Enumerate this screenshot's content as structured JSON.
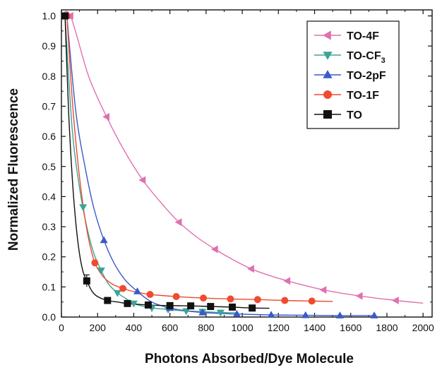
{
  "chart_data": {
    "type": "line",
    "title": "",
    "xlabel": "Photons Absorbed/Dye Molecule",
    "ylabel": "Normalized Fluorescence",
    "xlim": [
      0,
      2050
    ],
    "ylim": [
      0,
      1.02
    ],
    "xticks": [
      0,
      200,
      400,
      600,
      800,
      1000,
      1200,
      1400,
      1600,
      1800,
      2000
    ],
    "yticks": [
      0.0,
      0.1,
      0.2,
      0.3,
      0.4,
      0.5,
      0.6,
      0.7,
      0.8,
      0.9,
      1.0
    ],
    "xtick_labels": [
      "0",
      "200",
      "400",
      "600",
      "800",
      "1000",
      "1200",
      "1400",
      "1600",
      "1800",
      "2000"
    ],
    "ytick_labels": [
      "0.0",
      "0.1",
      "0.2",
      "0.3",
      "0.4",
      "0.5",
      "0.6",
      "0.7",
      "0.8",
      "0.9",
      "1.0"
    ],
    "grid": false,
    "legend_position": "top-right",
    "series": [
      {
        "name": "TO-4F",
        "label_main": "TO-4F",
        "label_sub": "",
        "color": "#e070b0",
        "marker": "triangle-left",
        "x": [
          50,
          250,
          450,
          650,
          850,
          1050,
          1250,
          1450,
          1650,
          1850
        ],
        "y": [
          1.0,
          0.665,
          0.455,
          0.315,
          0.225,
          0.16,
          0.12,
          0.09,
          0.07,
          0.055
        ],
        "fit_x": [
          0,
          50,
          150,
          250,
          350,
          450,
          550,
          650,
          750,
          850,
          950,
          1050,
          1150,
          1250,
          1350,
          1450,
          1550,
          1650,
          1750,
          1850,
          1950,
          2000
        ],
        "fit_y": [
          1.0,
          1.0,
          0.8,
          0.665,
          0.55,
          0.455,
          0.38,
          0.315,
          0.265,
          0.225,
          0.19,
          0.16,
          0.138,
          0.12,
          0.104,
          0.09,
          0.079,
          0.07,
          0.062,
          0.055,
          0.049,
          0.046
        ]
      },
      {
        "name": "TO-CF3",
        "label_main": "TO-CF",
        "label_sub": "3",
        "color": "#3aa595",
        "marker": "triangle-down",
        "x": [
          20,
          120,
          220,
          310,
          400,
          500,
          590,
          690,
          780,
          880
        ],
        "y": [
          1.0,
          0.365,
          0.155,
          0.08,
          0.045,
          0.03,
          0.025,
          0.02,
          0.018,
          0.015
        ],
        "fit_x": [
          20,
          60,
          100,
          140,
          180,
          220,
          260,
          310,
          360,
          400,
          450,
          500,
          590,
          690,
          780,
          880,
          980
        ],
        "fit_y": [
          1.0,
          0.62,
          0.43,
          0.3,
          0.21,
          0.155,
          0.11,
          0.08,
          0.06,
          0.045,
          0.036,
          0.03,
          0.025,
          0.02,
          0.018,
          0.015,
          0.014
        ]
      },
      {
        "name": "TO-2pF",
        "label_main": "TO-2pF",
        "label_sub": "",
        "color": "#3a5ac8",
        "marker": "triangle-up",
        "x": [
          30,
          235,
          420,
          600,
          780,
          970,
          1160,
          1350,
          1540,
          1730
        ],
        "y": [
          1.0,
          0.255,
          0.085,
          0.03,
          0.015,
          0.01,
          0.007,
          0.006,
          0.005,
          0.005
        ],
        "fit_x": [
          30,
          80,
          130,
          180,
          235,
          290,
          350,
          420,
          500,
          600,
          700,
          780,
          880,
          970,
          1160,
          1350,
          1540,
          1730
        ],
        "fit_y": [
          1.0,
          0.68,
          0.5,
          0.36,
          0.255,
          0.18,
          0.125,
          0.085,
          0.05,
          0.03,
          0.02,
          0.015,
          0.012,
          0.01,
          0.007,
          0.006,
          0.005,
          0.005
        ]
      },
      {
        "name": "TO-1F",
        "label_main": "TO-1F",
        "label_sub": "",
        "color": "#f04a30",
        "marker": "circle",
        "x": [
          30,
          185,
          340,
          490,
          635,
          785,
          935,
          1085,
          1235,
          1385
        ],
        "y": [
          1.0,
          0.18,
          0.095,
          0.075,
          0.068,
          0.063,
          0.06,
          0.058,
          0.055,
          0.053
        ],
        "fit_x": [
          30,
          60,
          90,
          120,
          150,
          185,
          230,
          280,
          340,
          410,
          490,
          635,
          785,
          935,
          1085,
          1235,
          1385,
          1500
        ],
        "fit_y": [
          1.0,
          0.72,
          0.52,
          0.37,
          0.26,
          0.18,
          0.135,
          0.11,
          0.095,
          0.083,
          0.075,
          0.068,
          0.063,
          0.06,
          0.058,
          0.055,
          0.053,
          0.052
        ]
      },
      {
        "name": "TO",
        "label_main": "TO",
        "label_sub": "",
        "color": "#111111",
        "marker": "square",
        "x": [
          20,
          140,
          255,
          365,
          480,
          600,
          715,
          825,
          945,
          1055
        ],
        "y": [
          1.0,
          0.12,
          0.055,
          0.045,
          0.04,
          0.038,
          0.037,
          0.035,
          0.033,
          0.03
        ],
        "fit_x": [
          20,
          40,
          60,
          80,
          100,
          120,
          140,
          170,
          200,
          255,
          310,
          365,
          480,
          600,
          715,
          825,
          945,
          1055,
          1150
        ],
        "fit_y": [
          1.0,
          0.68,
          0.46,
          0.31,
          0.21,
          0.15,
          0.12,
          0.085,
          0.068,
          0.055,
          0.05,
          0.045,
          0.04,
          0.038,
          0.037,
          0.035,
          0.033,
          0.03,
          0.029
        ]
      }
    ]
  }
}
